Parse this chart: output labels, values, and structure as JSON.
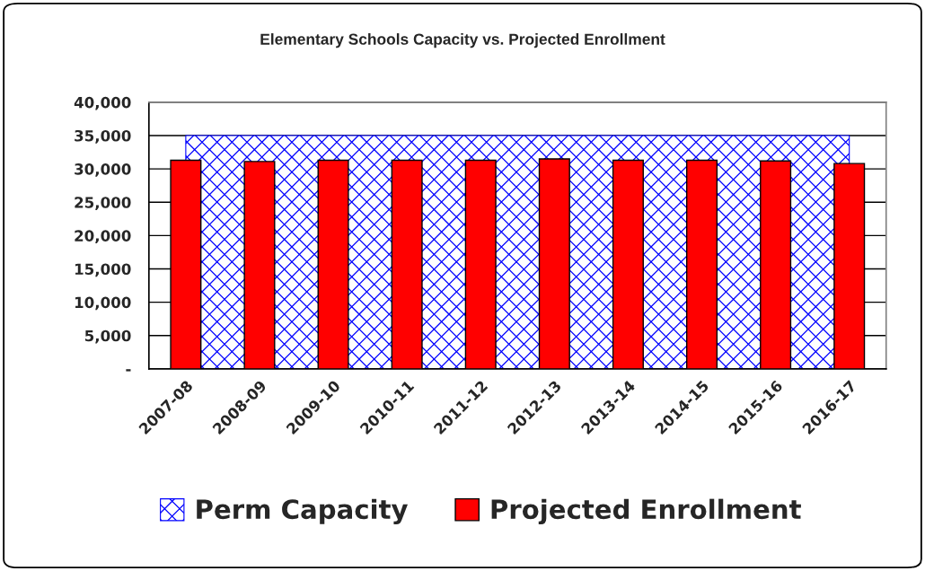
{
  "chart_data": {
    "type": "bar",
    "title": "Elementary Schools Capacity vs. Projected Enrollment",
    "categories": [
      "2007-08",
      "2008-09",
      "2009-10",
      "2010-11",
      "2011-12",
      "2012-13",
      "2013-14",
      "2014-15",
      "2015-16",
      "2016-17"
    ],
    "series": [
      {
        "name": "Perm Capacity",
        "type": "area",
        "color": "#0000ff",
        "values": [
          35000,
          35000,
          35000,
          35000,
          35000,
          35000,
          35000,
          35000,
          35000,
          35000
        ]
      },
      {
        "name": "Projected Enrollment",
        "color": "#ff0000",
        "values": [
          31300,
          31100,
          31300,
          31300,
          31300,
          31500,
          31300,
          31300,
          31200,
          30800
        ]
      }
    ],
    "ylim": [
      0,
      40000
    ],
    "yticks": [
      {
        "value": 0,
        "label": "-"
      },
      {
        "value": 5000,
        "label": "5,000"
      },
      {
        "value": 10000,
        "label": "10,000"
      },
      {
        "value": 15000,
        "label": "15,000"
      },
      {
        "value": 20000,
        "label": "20,000"
      },
      {
        "value": 25000,
        "label": "25,000"
      },
      {
        "value": 30000,
        "label": "30,000"
      },
      {
        "value": 35000,
        "label": "35,000"
      },
      {
        "value": 40000,
        "label": "40,000"
      }
    ],
    "grid": "y",
    "legend": "bottom"
  }
}
